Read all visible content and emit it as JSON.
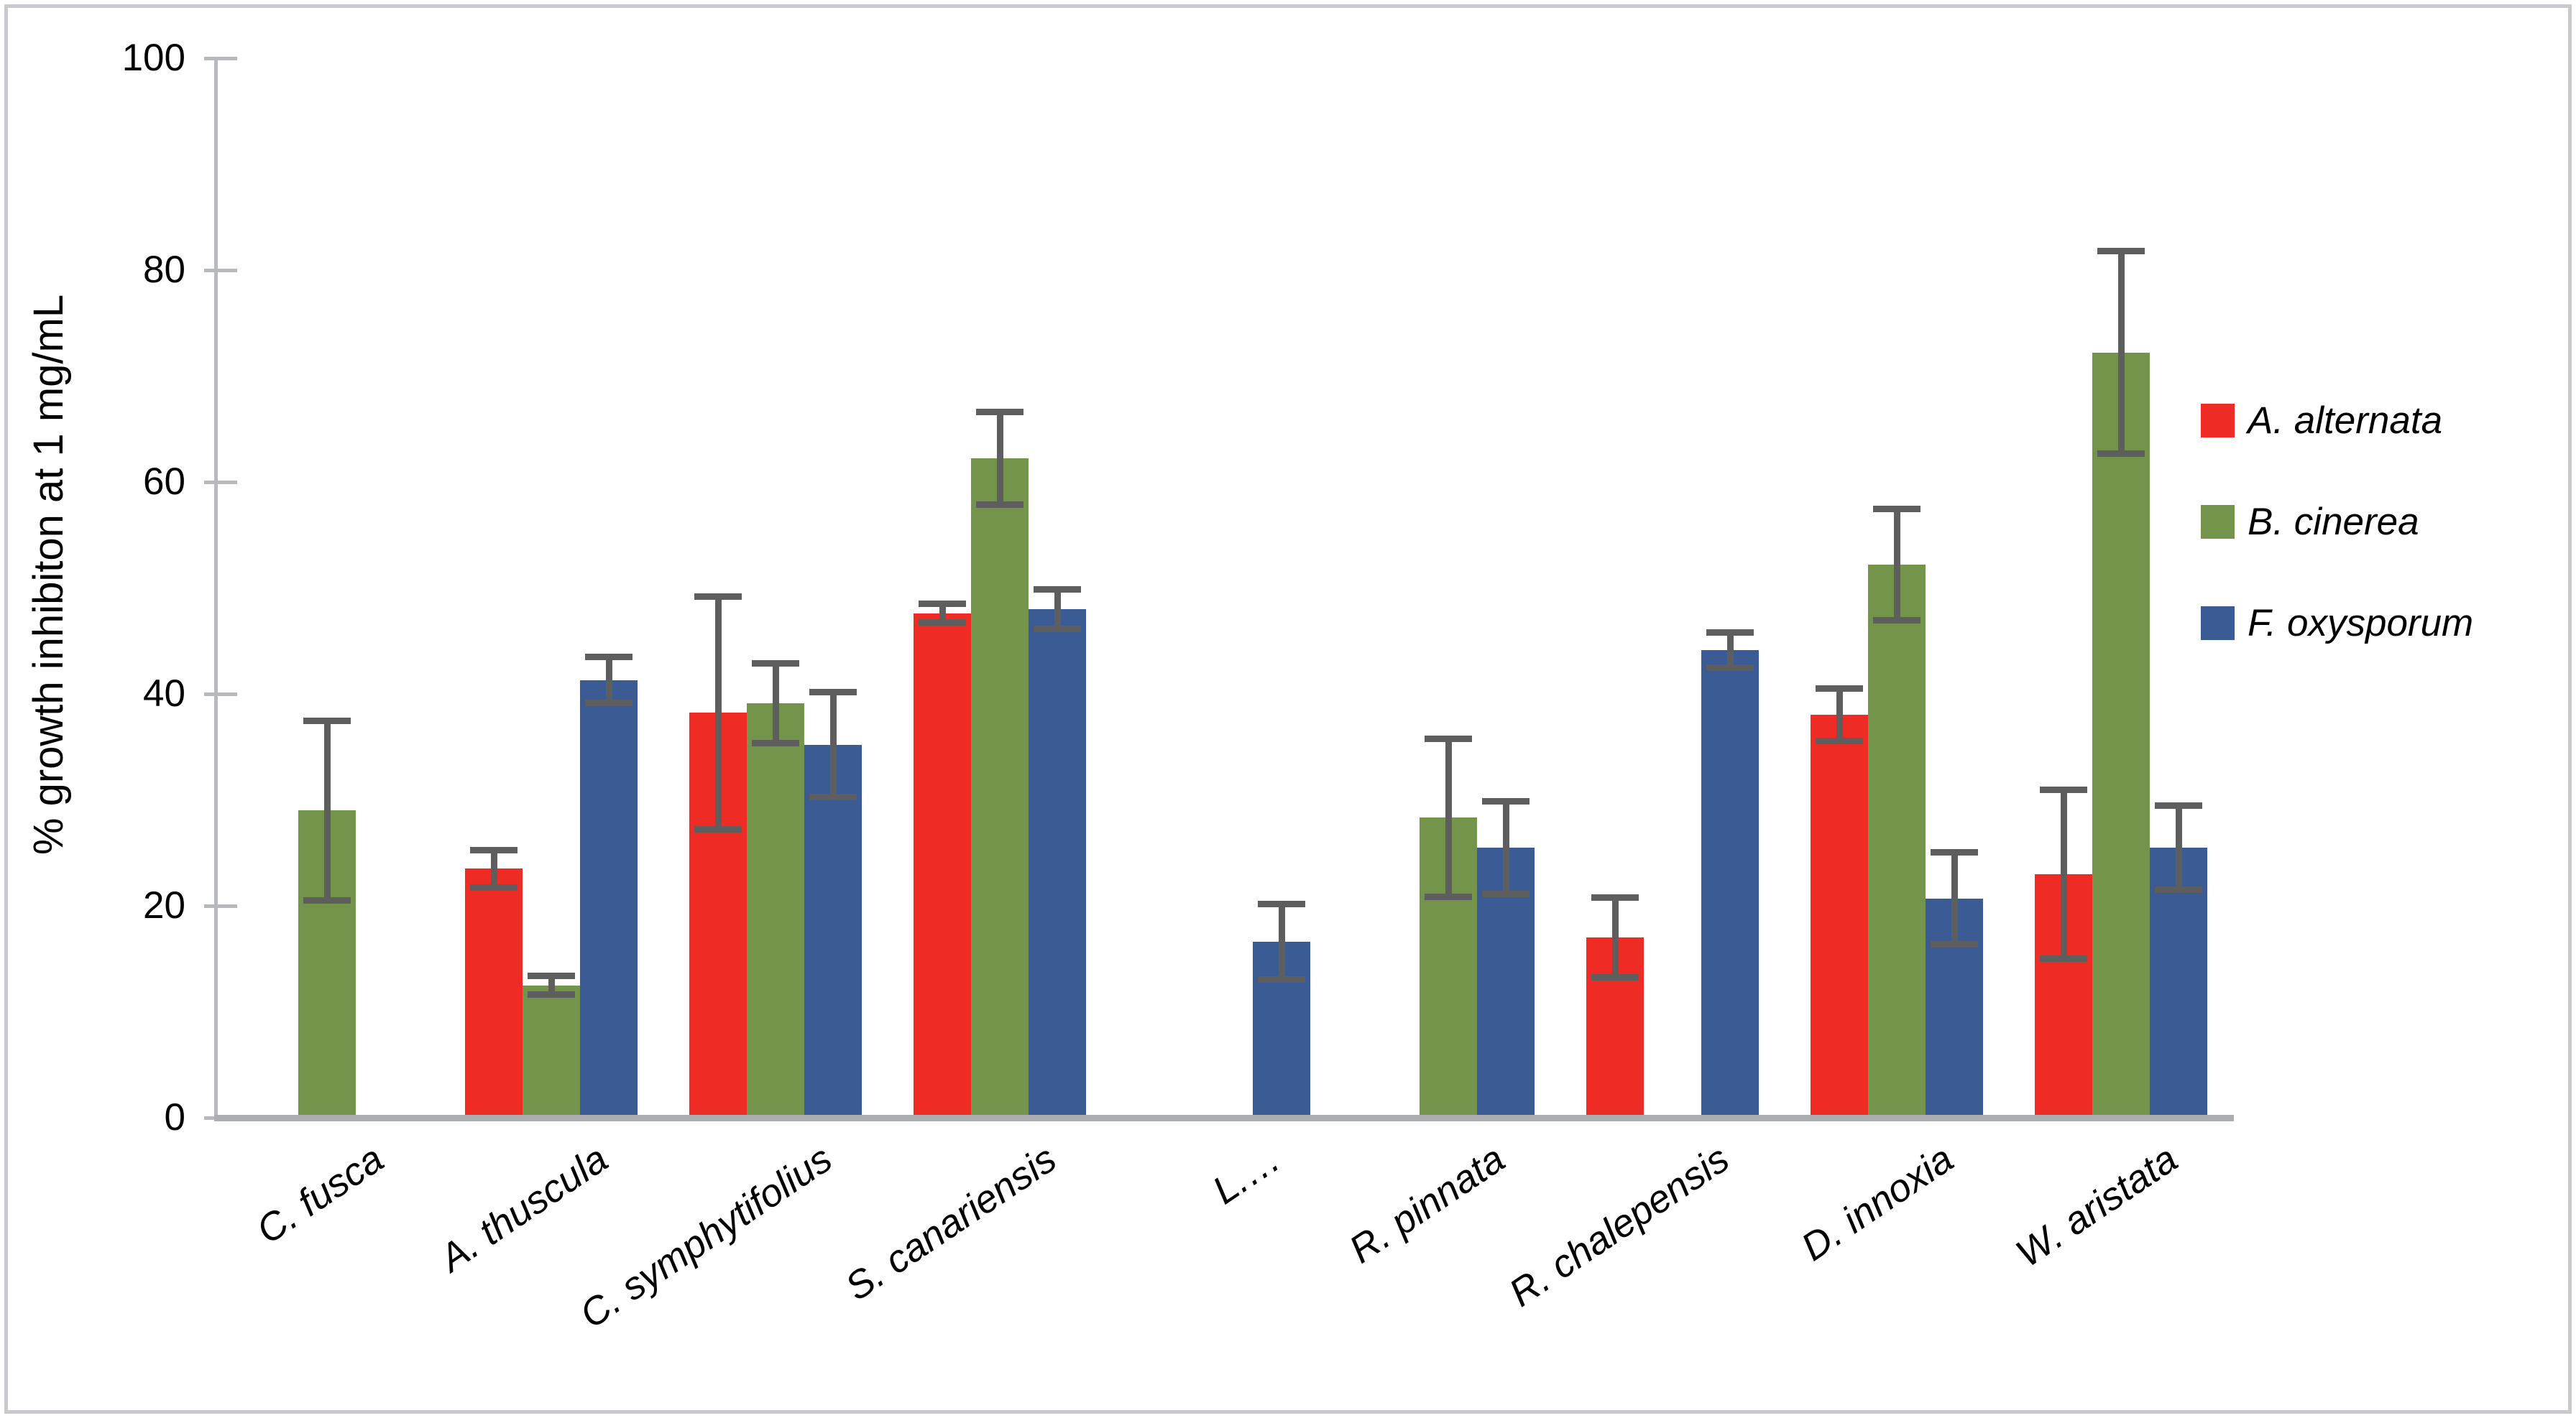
{
  "chart_data": {
    "type": "bar",
    "title": "",
    "ylabel": "% growth inhibiton at 1 mg/mL",
    "xlabel": "",
    "ylim": [
      0,
      100
    ],
    "yticks": [
      0,
      20,
      40,
      60,
      80,
      100
    ],
    "grid": false,
    "legend_position": "right",
    "error_bars": true,
    "categories": [
      "C. fusca",
      "A. thuscula",
      "C. symphytifolius",
      "S. canariensis",
      "L.…",
      "R. pinnata",
      "R. chalepensis",
      "D. innoxia",
      "W. aristata"
    ],
    "series": [
      {
        "name": "A. alternata",
        "color": "#ee2b24",
        "values": [
          null,
          23.5,
          38.2,
          47.6,
          null,
          null,
          17.0,
          38.0,
          23.0
        ],
        "errors": [
          null,
          1.8,
          11.0,
          0.9,
          null,
          null,
          3.8,
          2.5,
          8.0
        ]
      },
      {
        "name": "B. cinerea",
        "color": "#74934b",
        "values": [
          29.0,
          12.5,
          39.1,
          62.2,
          null,
          28.3,
          null,
          52.2,
          72.2
        ],
        "errors": [
          8.5,
          0.9,
          3.8,
          4.4,
          null,
          7.5,
          null,
          5.3,
          9.6
        ]
      },
      {
        "name": "F. oxysporum",
        "color": "#3b5b95",
        "values": [
          null,
          41.3,
          35.2,
          48.0,
          16.6,
          25.5,
          44.1,
          20.7,
          25.5
        ],
        "errors": [
          null,
          2.2,
          5.0,
          1.9,
          3.6,
          4.4,
          1.7,
          4.4,
          4.0
        ]
      }
    ],
    "colors": {
      "error_bar": "#5e5e5e",
      "axis_left": "#b7b9bd",
      "axis_bottom": "#acadb1",
      "frame_border": "#c8c9cc",
      "text": "#000000"
    }
  }
}
